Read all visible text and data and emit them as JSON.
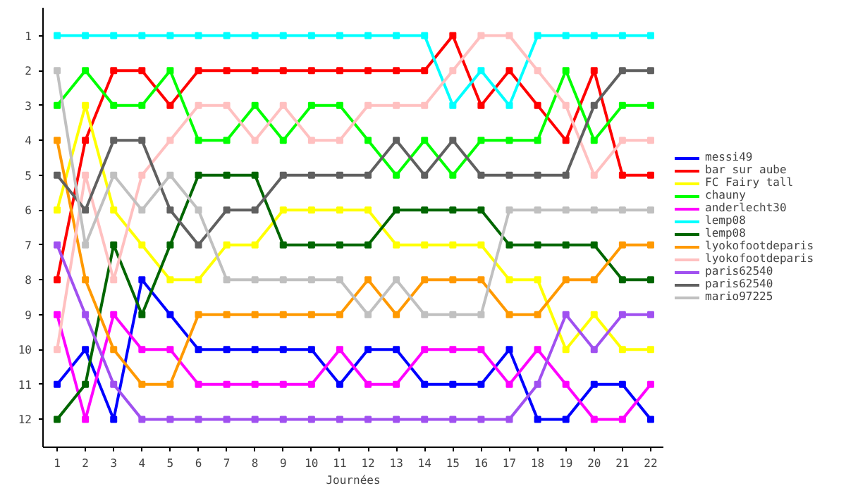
{
  "chart_data": {
    "type": "line",
    "xlabel": "Journées",
    "x": [
      1,
      2,
      3,
      4,
      5,
      6,
      7,
      8,
      9,
      10,
      11,
      12,
      13,
      14,
      15,
      16,
      17,
      18,
      19,
      20,
      21,
      22
    ],
    "series": [
      {
        "name": "messi49",
        "color": "#0000ff",
        "values": [
          11,
          10,
          12,
          8,
          9,
          10,
          10,
          10,
          10,
          10,
          11,
          10,
          10,
          11,
          11,
          11,
          10,
          12,
          12,
          11,
          11,
          12
        ]
      },
      {
        "name": "bar sur aube",
        "color": "#ff0000",
        "values": [
          8,
          4,
          2,
          2,
          3,
          2,
          2,
          2,
          2,
          2,
          2,
          2,
          2,
          2,
          1,
          3,
          2,
          3,
          4,
          2,
          5,
          5
        ]
      },
      {
        "name": "FC Fairy tall",
        "color": "#ffff00",
        "values": [
          6,
          3,
          6,
          7,
          8,
          8,
          7,
          7,
          6,
          6,
          6,
          6,
          7,
          7,
          7,
          7,
          8,
          8,
          10,
          9,
          10,
          10
        ]
      },
      {
        "name": "chauny",
        "color": "#00ff00",
        "values": [
          3,
          2,
          3,
          3,
          2,
          4,
          4,
          3,
          4,
          3,
          3,
          4,
          5,
          4,
          5,
          4,
          4,
          4,
          2,
          4,
          3,
          3
        ]
      },
      {
        "name": "anderlecht30",
        "color": "#ff00ff",
        "values": [
          9,
          12,
          9,
          10,
          10,
          11,
          11,
          11,
          11,
          11,
          10,
          11,
          11,
          10,
          10,
          10,
          11,
          10,
          11,
          12,
          12,
          11
        ]
      },
      {
        "name": "lemp08",
        "color": "#00ffff",
        "values": [
          1,
          1,
          1,
          1,
          1,
          1,
          1,
          1,
          1,
          1,
          1,
          1,
          1,
          1,
          3,
          2,
          3,
          1,
          1,
          1,
          1,
          1
        ]
      },
      {
        "name": "lemp08",
        "color": "#006600",
        "values": [
          12,
          11,
          7,
          9,
          7,
          5,
          5,
          5,
          7,
          7,
          7,
          7,
          6,
          6,
          6,
          6,
          7,
          7,
          7,
          7,
          8,
          8
        ]
      },
      {
        "name": "lyokofootdeparis",
        "color": "#ff9900",
        "values": [
          4,
          8,
          10,
          11,
          11,
          9,
          9,
          9,
          9,
          9,
          9,
          8,
          9,
          8,
          8,
          8,
          9,
          9,
          8,
          8,
          7,
          7
        ]
      },
      {
        "name": "lyokofootdeparis",
        "color": "#ffc0c0",
        "values": [
          10,
          5,
          8,
          5,
          4,
          3,
          3,
          4,
          3,
          4,
          4,
          3,
          3,
          3,
          2,
          1,
          1,
          2,
          3,
          5,
          4,
          4
        ]
      },
      {
        "name": "paris62540",
        "color": "#a050f0",
        "values": [
          7,
          9,
          11,
          12,
          12,
          12,
          12,
          12,
          12,
          12,
          12,
          12,
          12,
          12,
          12,
          12,
          12,
          11,
          9,
          10,
          9,
          9
        ]
      },
      {
        "name": "paris62540",
        "color": "#606060",
        "values": [
          5,
          6,
          4,
          4,
          6,
          7,
          6,
          6,
          5,
          5,
          5,
          5,
          4,
          5,
          4,
          5,
          5,
          5,
          5,
          3,
          2,
          2
        ]
      },
      {
        "name": "mario97225",
        "color": "#c0c0c0",
        "values": [
          2,
          7,
          5,
          6,
          5,
          6,
          8,
          8,
          8,
          8,
          8,
          9,
          8,
          9,
          9,
          9,
          6,
          6,
          6,
          6,
          6,
          6
        ]
      }
    ],
    "xlim": [
      0.5,
      22.45
    ],
    "ylim": [
      12.8,
      0.2
    ],
    "xticks": [
      1,
      2,
      3,
      4,
      5,
      6,
      7,
      8,
      9,
      10,
      11,
      12,
      13,
      14,
      15,
      16,
      17,
      18,
      19,
      20,
      21,
      22
    ],
    "yticks": [
      1,
      2,
      3,
      4,
      5,
      6,
      7,
      8,
      9,
      10,
      11,
      12
    ],
    "grid": false,
    "legend": "right",
    "marker": "square",
    "line_style": "solid"
  }
}
